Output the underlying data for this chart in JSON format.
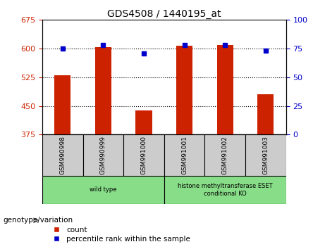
{
  "title": "GDS4508 / 1440195_at",
  "samples": [
    "GSM990998",
    "GSM990999",
    "GSM991000",
    "GSM991001",
    "GSM991002",
    "GSM991003"
  ],
  "counts": [
    530,
    603,
    438,
    608,
    610,
    480
  ],
  "percentile_ranks": [
    75,
    78,
    71,
    78,
    78,
    73
  ],
  "ylim_left": [
    375,
    675
  ],
  "ylim_right": [
    0,
    100
  ],
  "yticks_left": [
    375,
    450,
    525,
    600,
    675
  ],
  "yticks_right": [
    0,
    25,
    50,
    75,
    100
  ],
  "bar_color": "#cc2200",
  "dot_color": "#0000cc",
  "grid_color": "#000000",
  "groups": [
    {
      "label": "wild type",
      "samples": [
        0,
        1,
        2
      ],
      "color": "#88dd88"
    },
    {
      "label": "histone methyltransferase ESET\nconditional KO",
      "samples": [
        3,
        4,
        5
      ],
      "color": "#88dd88"
    }
  ],
  "sample_cell_color": "#cccccc",
  "xlabel_group": "genotype/variation",
  "legend_count": "count",
  "legend_pct": "percentile rank within the sample",
  "tick_label_color_left": "#cc2200",
  "tick_label_color_right": "#0000cc",
  "bar_width": 0.4
}
